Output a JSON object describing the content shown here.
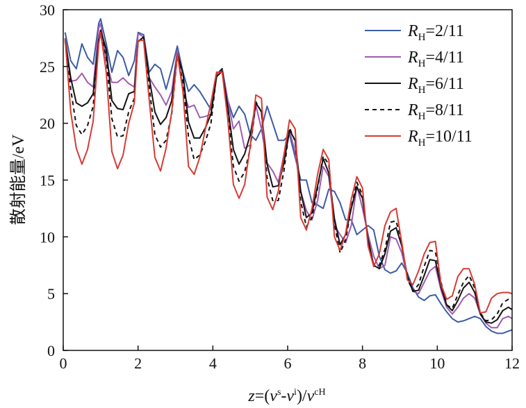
{
  "chart_data": {
    "type": "line",
    "title": "",
    "xlabel": "z=(v^s-v^i)/v^cH",
    "xlabel_parts": {
      "z": "z",
      "eq": "=(",
      "v1": "v",
      "sup_s": "s",
      "dash": "-",
      "v2": "v",
      "sup_i": "i",
      "close": ")/",
      "v3": "v",
      "sup_cH": "cH"
    },
    "ylabel": "散射能量/eV",
    "xlim": [
      0,
      12
    ],
    "ylim": [
      0,
      30
    ],
    "xticks": [
      0,
      2,
      4,
      6,
      8,
      10,
      12
    ],
    "xtick_labels": [
      "0",
      "2",
      "4",
      "6",
      "8",
      "10",
      "12"
    ],
    "yticks": [
      0,
      5,
      10,
      15,
      20,
      25,
      30
    ],
    "ytick_labels": [
      "0",
      "5",
      "10",
      "15",
      "20",
      "25",
      "30"
    ],
    "legend_position": "top-right",
    "series": [
      {
        "name": "R_H=2/11",
        "label_var": "R",
        "label_sub": "H",
        "label_val": "=2/11",
        "color": "#3b5ba5",
        "dash": "",
        "x": [
          0.05,
          0.2,
          0.35,
          0.5,
          0.65,
          0.8,
          0.95,
          1.0,
          1.15,
          1.3,
          1.45,
          1.6,
          1.75,
          1.9,
          2.0,
          2.15,
          2.3,
          2.45,
          2.6,
          2.75,
          2.9,
          3.05,
          3.2,
          3.35,
          3.5,
          3.65,
          3.8,
          3.95,
          4.1,
          4.25,
          4.4,
          4.55,
          4.7,
          4.85,
          5.0,
          5.15,
          5.3,
          5.45,
          5.6,
          5.75,
          5.9,
          6.05,
          6.2,
          6.35,
          6.5,
          6.65,
          6.8,
          6.95,
          7.1,
          7.25,
          7.4,
          7.55,
          7.7,
          7.85,
          8.0,
          8.15,
          8.3,
          8.45,
          8.6,
          8.75,
          8.9,
          9.05,
          9.2,
          9.35,
          9.5,
          9.65,
          9.8,
          9.95,
          10.1,
          10.25,
          10.4,
          10.55,
          10.7,
          10.85,
          11.0,
          11.15,
          11.3,
          11.45,
          11.6,
          11.75,
          11.9,
          12.0
        ],
        "values": [
          28.0,
          25.5,
          24.8,
          27.0,
          25.8,
          25.2,
          28.8,
          29.2,
          27.0,
          24.5,
          26.4,
          25.8,
          24.2,
          25.5,
          28.0,
          27.8,
          24.5,
          25.2,
          24.8,
          23.0,
          24.8,
          26.8,
          24.5,
          22.8,
          23.4,
          22.8,
          22.0,
          21.2,
          24.3,
          24.8,
          22.0,
          20.5,
          21.5,
          20.8,
          19.0,
          18.5,
          19.5,
          21.5,
          20.0,
          18.5,
          18.5,
          19.0,
          17.0,
          15.0,
          15.0,
          13.0,
          12.8,
          12.5,
          14.2,
          14.0,
          13.0,
          11.5,
          11.5,
          10.2,
          10.6,
          11.0,
          10.6,
          8.3,
          7.1,
          6.8,
          7.0,
          7.7,
          6.8,
          5.5,
          4.7,
          4.4,
          4.8,
          4.9,
          4.1,
          3.4,
          2.8,
          2.5,
          2.6,
          2.8,
          3.0,
          2.8,
          2.1,
          1.7,
          1.5,
          1.5,
          1.7,
          1.8
        ]
      },
      {
        "name": "R_H=4/11",
        "label_var": "R",
        "label_sub": "H",
        "label_val": "=4/11",
        "color": "#a25ab0",
        "dash": "",
        "x": [
          0.05,
          0.2,
          0.35,
          0.5,
          0.65,
          0.8,
          0.95,
          1.0,
          1.15,
          1.3,
          1.45,
          1.6,
          1.75,
          1.9,
          2.0,
          2.15,
          2.3,
          2.45,
          2.6,
          2.75,
          2.9,
          3.05,
          3.2,
          3.35,
          3.5,
          3.65,
          3.8,
          3.95,
          4.1,
          4.25,
          4.4,
          4.55,
          4.7,
          4.85,
          5.0,
          5.15,
          5.3,
          5.45,
          5.6,
          5.75,
          5.9,
          6.05,
          6.2,
          6.35,
          6.5,
          6.65,
          6.8,
          6.95,
          7.1,
          7.25,
          7.4,
          7.55,
          7.7,
          7.85,
          8.0,
          8.15,
          8.3,
          8.45,
          8.6,
          8.75,
          8.9,
          9.05,
          9.2,
          9.35,
          9.5,
          9.65,
          9.8,
          9.95,
          10.1,
          10.25,
          10.4,
          10.55,
          10.7,
          10.85,
          11.0,
          11.15,
          11.3,
          11.45,
          11.6,
          11.75,
          11.9,
          12.0
        ],
        "values": [
          27.5,
          23.7,
          23.8,
          24.4,
          23.6,
          23.2,
          28.4,
          28.8,
          25.5,
          23.6,
          23.6,
          24.0,
          23.5,
          23.2,
          27.9,
          27.6,
          24.0,
          23.2,
          22.5,
          21.6,
          22.8,
          26.4,
          23.0,
          21.4,
          21.6,
          20.5,
          20.6,
          20.8,
          24.3,
          24.8,
          22.0,
          19.5,
          20.2,
          17.8,
          18.1,
          21.6,
          19.5,
          16.5,
          15.8,
          14.8,
          17.2,
          19.3,
          17.5,
          14.0,
          12.3,
          11.5,
          13.2,
          16.2,
          15.3,
          11.0,
          10.2,
          9.5,
          11.0,
          14.5,
          12.5,
          10.2,
          8.3,
          7.2,
          7.5,
          10.0,
          9.8,
          8.6,
          6.5,
          5.2,
          5.0,
          6.0,
          7.0,
          7.4,
          5.3,
          3.8,
          3.2,
          3.8,
          4.6,
          5.0,
          4.6,
          3.2,
          2.4,
          2.0,
          2.0,
          2.8,
          3.0,
          2.8
        ]
      },
      {
        "name": "R_H=6/11",
        "label_var": "R",
        "label_sub": "H",
        "label_val": "=6/11",
        "color": "#111111",
        "dash": "",
        "x": [
          0.05,
          0.2,
          0.35,
          0.5,
          0.65,
          0.8,
          0.95,
          1.0,
          1.15,
          1.3,
          1.45,
          1.6,
          1.75,
          1.9,
          2.0,
          2.15,
          2.3,
          2.45,
          2.6,
          2.75,
          2.9,
          3.05,
          3.2,
          3.35,
          3.5,
          3.65,
          3.8,
          3.95,
          4.1,
          4.25,
          4.4,
          4.55,
          4.7,
          4.85,
          5.0,
          5.15,
          5.3,
          5.45,
          5.6,
          5.75,
          5.9,
          6.05,
          6.2,
          6.35,
          6.5,
          6.65,
          6.8,
          6.95,
          7.1,
          7.25,
          7.4,
          7.55,
          7.7,
          7.85,
          8.0,
          8.15,
          8.3,
          8.45,
          8.6,
          8.75,
          8.9,
          9.05,
          9.2,
          9.35,
          9.5,
          9.65,
          9.8,
          9.95,
          10.1,
          10.25,
          10.4,
          10.55,
          10.7,
          10.85,
          11.0,
          11.15,
          11.3,
          11.45,
          11.6,
          11.75,
          11.9,
          12.0
        ],
        "values": [
          27.4,
          24.0,
          21.8,
          21.5,
          21.8,
          22.6,
          27.3,
          28.2,
          26.5,
          22.0,
          21.3,
          21.2,
          22.6,
          22.8,
          27.2,
          27.6,
          24.0,
          21.0,
          19.9,
          20.5,
          22.0,
          26.1,
          24.4,
          20.1,
          18.7,
          18.7,
          19.6,
          20.8,
          24.1,
          24.6,
          21.4,
          17.7,
          16.4,
          17.3,
          19.0,
          21.8,
          21.0,
          16.4,
          14.4,
          14.5,
          16.5,
          19.4,
          18.5,
          14.0,
          11.7,
          12.1,
          14.5,
          16.9,
          15.6,
          11.6,
          9.3,
          10.2,
          12.5,
          14.4,
          13.4,
          9.8,
          7.5,
          7.2,
          8.5,
          10.5,
          10.8,
          9.2,
          6.5,
          5.2,
          5.3,
          6.6,
          8.0,
          7.9,
          5.6,
          4.0,
          3.5,
          4.4,
          5.5,
          6.0,
          5.1,
          3.2,
          2.5,
          2.4,
          2.7,
          3.5,
          3.8,
          3.6
        ]
      },
      {
        "name": "R_H=8/11",
        "label_var": "R",
        "label_sub": "H",
        "label_val": "=8/11",
        "color": "#111111",
        "dash": "6,5",
        "x": [
          0.05,
          0.2,
          0.35,
          0.5,
          0.65,
          0.8,
          0.95,
          1.0,
          1.15,
          1.3,
          1.45,
          1.6,
          1.75,
          1.9,
          2.0,
          2.15,
          2.3,
          2.45,
          2.6,
          2.75,
          2.9,
          3.05,
          3.2,
          3.35,
          3.5,
          3.65,
          3.8,
          3.95,
          4.1,
          4.25,
          4.4,
          4.55,
          4.7,
          4.85,
          5.0,
          5.15,
          5.3,
          5.45,
          5.6,
          5.75,
          5.9,
          6.05,
          6.2,
          6.35,
          6.5,
          6.65,
          6.8,
          6.95,
          7.1,
          7.25,
          7.4,
          7.55,
          7.7,
          7.85,
          8.0,
          8.15,
          8.3,
          8.45,
          8.6,
          8.75,
          8.9,
          9.05,
          9.2,
          9.35,
          9.5,
          9.65,
          9.8,
          9.95,
          10.1,
          10.25,
          10.4,
          10.55,
          10.7,
          10.85,
          11.0,
          11.15,
          11.3,
          11.45,
          11.6,
          11.75,
          11.9,
          12.0
        ],
        "values": [
          27.3,
          23.0,
          19.8,
          19.0,
          19.8,
          21.5,
          27.4,
          28.1,
          25.8,
          20.4,
          18.8,
          18.9,
          21.0,
          22.2,
          27.2,
          27.5,
          23.2,
          19.0,
          17.9,
          18.5,
          20.8,
          26.0,
          23.6,
          18.8,
          16.8,
          17.2,
          18.4,
          20.0,
          24.3,
          24.8,
          20.8,
          16.2,
          14.9,
          15.7,
          17.8,
          21.9,
          21.0,
          15.2,
          13.2,
          13.2,
          15.8,
          19.6,
          18.4,
          13.1,
          10.9,
          11.7,
          14.3,
          17.1,
          16.4,
          11.1,
          8.6,
          9.7,
          12.6,
          14.8,
          13.7,
          9.5,
          7.4,
          7.5,
          8.9,
          11.3,
          11.4,
          9.5,
          6.3,
          5.2,
          5.8,
          7.4,
          8.8,
          8.7,
          6.0,
          4.0,
          3.7,
          4.9,
          6.0,
          6.6,
          5.5,
          3.3,
          2.6,
          2.7,
          3.2,
          4.2,
          4.5,
          4.3
        ]
      },
      {
        "name": "R_H=10/11",
        "label_var": "R",
        "label_sub": "H",
        "label_val": "=10/11",
        "color": "#d83a34",
        "dash": "",
        "x": [
          0.05,
          0.2,
          0.35,
          0.5,
          0.65,
          0.8,
          0.95,
          1.0,
          1.15,
          1.3,
          1.45,
          1.6,
          1.75,
          1.9,
          2.0,
          2.15,
          2.3,
          2.45,
          2.6,
          2.75,
          2.9,
          3.05,
          3.2,
          3.35,
          3.5,
          3.65,
          3.8,
          3.95,
          4.1,
          4.25,
          4.4,
          4.55,
          4.7,
          4.85,
          5.0,
          5.15,
          5.3,
          5.45,
          5.6,
          5.75,
          5.9,
          6.05,
          6.2,
          6.35,
          6.5,
          6.65,
          6.8,
          6.95,
          7.1,
          7.25,
          7.4,
          7.55,
          7.7,
          7.85,
          8.0,
          8.15,
          8.3,
          8.45,
          8.6,
          8.75,
          8.9,
          9.05,
          9.2,
          9.35,
          9.5,
          9.65,
          9.8,
          9.95,
          10.1,
          10.25,
          10.4,
          10.55,
          10.7,
          10.85,
          11.0,
          11.15,
          11.3,
          11.45,
          11.6,
          11.75,
          11.9,
          12.0
        ],
        "values": [
          27.5,
          21.0,
          17.8,
          16.4,
          17.7,
          20.2,
          27.0,
          28.0,
          24.5,
          17.5,
          16.0,
          17.2,
          20.0,
          21.8,
          27.3,
          27.3,
          22.0,
          17.0,
          15.8,
          17.8,
          21.0,
          26.1,
          22.8,
          16.2,
          15.5,
          17.0,
          19.5,
          21.8,
          24.5,
          24.5,
          20.3,
          14.6,
          13.4,
          14.6,
          18.0,
          22.5,
          22.2,
          13.5,
          12.4,
          14.0,
          17.2,
          20.3,
          19.5,
          11.7,
          10.6,
          12.5,
          15.5,
          17.7,
          16.8,
          10.0,
          8.8,
          10.3,
          13.3,
          15.3,
          14.3,
          9.2,
          7.4,
          8.5,
          11.0,
          12.2,
          12.5,
          9.5,
          6.2,
          5.8,
          7.0,
          8.5,
          9.5,
          9.6,
          5.8,
          4.5,
          4.8,
          6.5,
          7.2,
          7.2,
          5.8,
          3.3,
          3.4,
          4.6,
          5.0,
          5.1,
          5.1,
          5.0
        ]
      }
    ]
  }
}
